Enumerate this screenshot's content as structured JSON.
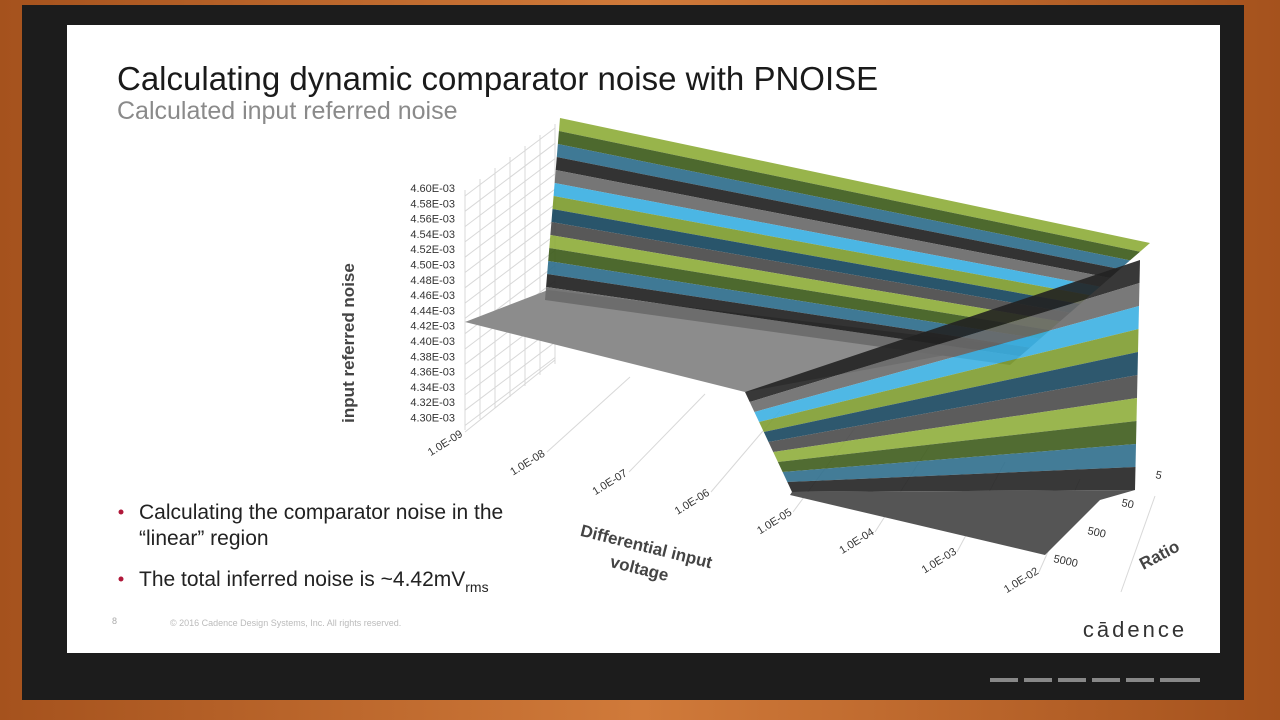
{
  "header": {
    "title": "Calculating dynamic comparator noise with PNOISE",
    "subtitle": "Calculated input referred noise"
  },
  "chart": {
    "y_axis_title": "input referred noise",
    "y_ticks": [
      "4.60E-03",
      "4.58E-03",
      "4.56E-03",
      "4.54E-03",
      "4.52E-03",
      "4.50E-03",
      "4.48E-03",
      "4.46E-03",
      "4.44E-03",
      "4.42E-03",
      "4.40E-03",
      "4.38E-03",
      "4.36E-03",
      "4.34E-03",
      "4.32E-03",
      "4.30E-03"
    ],
    "x_axis_title": [
      "Differential input",
      "voltage"
    ],
    "x_ticks": [
      "1.0E-09",
      "1.0E-08",
      "1.0E-07",
      "1.0E-06",
      "1.0E-05",
      "1.0E-04",
      "1.0E-03",
      "1.0E-02"
    ],
    "z_axis_title": "Ratio",
    "z_ticks": [
      "5",
      "50",
      "500",
      "5000"
    ]
  },
  "bullets": [
    {
      "lines": [
        "Calculating the comparator noise in the",
        "“linear” region"
      ]
    },
    {
      "text": "The total inferred noise is ~4.42mV",
      "subscript": "rms"
    }
  ],
  "footer": {
    "page_number": "8",
    "copyright": "© 2016 Cadence Design Systems, Inc. All rights reserved.",
    "logo": "cādence"
  }
}
